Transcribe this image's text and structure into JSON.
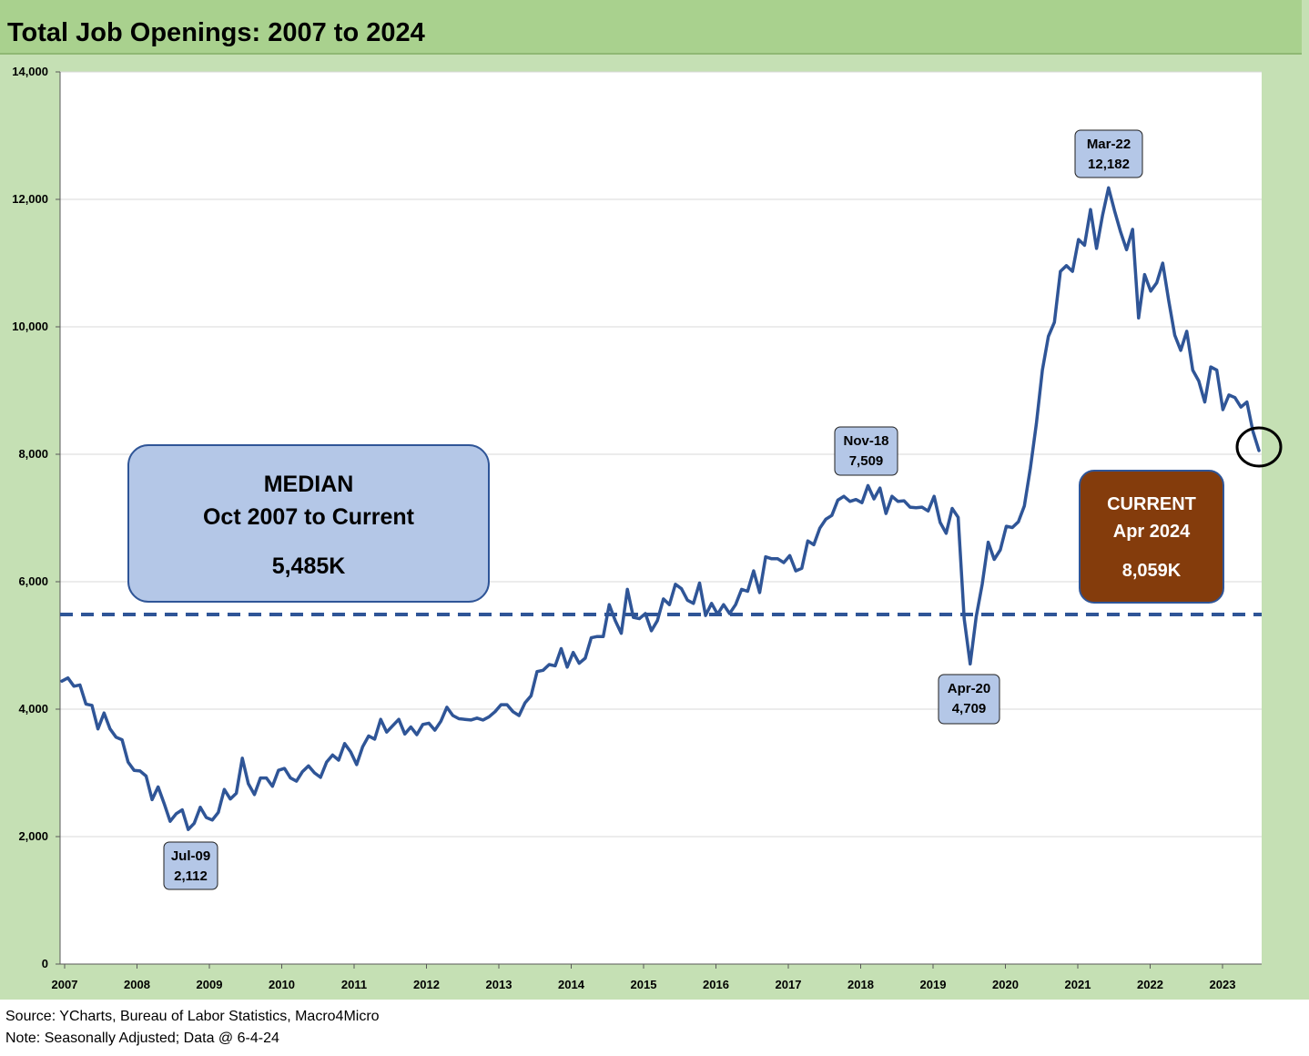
{
  "title": "Total Job Openings: 2007 to 2024",
  "footer": {
    "source": "Source: YCharts, Bureau of Labor Statistics, Macro4Micro",
    "note": "Note: Seasonally Adjusted; Data @ 6-4-24"
  },
  "colors": {
    "line": "#2f5597",
    "median_line": "#2f5597",
    "median_box_fill": "#b4c7e7",
    "callout_fill": "#b4c7e7",
    "current_box_fill": "#843c0c",
    "title_bar": "#a9d18e",
    "frame": "#c5e0b4"
  },
  "median_box": {
    "line1": "MEDIAN",
    "line2": "Oct 2007 to Current",
    "value": "5,485K"
  },
  "current_box": {
    "line1": "CURRENT",
    "line2": "Apr 2024",
    "value": "8,059K"
  },
  "chart_data": {
    "type": "line",
    "title": "Total Job Openings: 2007 to 2024",
    "xlabel": "",
    "ylabel": "",
    "ylim": [
      0,
      14000
    ],
    "yticks": [
      0,
      2000,
      4000,
      6000,
      8000,
      10000,
      12000,
      14000
    ],
    "ytick_labels": [
      "0",
      "2,000",
      "4,000",
      "6,000",
      "8,000",
      "10,000",
      "12,000",
      "14,000"
    ],
    "xtick_labels": [
      "2007",
      "2008",
      "2009",
      "2010",
      "2011",
      "2012",
      "2013",
      "2014",
      "2015",
      "2016",
      "2017",
      "2018",
      "2019",
      "2020",
      "2021",
      "2022",
      "2023"
    ],
    "grid": "horizontal",
    "median": 5485,
    "series": [
      {
        "values": [
          4440,
          4490,
          4360,
          4380,
          4080,
          4060,
          3690,
          3940,
          3690,
          3560,
          3520,
          3170,
          3040,
          3030,
          2950,
          2580,
          2780,
          2520,
          2240,
          2360,
          2420,
          2112,
          2210,
          2460,
          2300,
          2260,
          2380,
          2740,
          2590,
          2680,
          3230,
          2830,
          2660,
          2920,
          2920,
          2790,
          3040,
          3070,
          2920,
          2870,
          3020,
          3110,
          3000,
          2930,
          3170,
          3280,
          3200,
          3460,
          3330,
          3130,
          3410,
          3580,
          3530,
          3840,
          3640,
          3740,
          3840,
          3610,
          3720,
          3600,
          3760,
          3780,
          3670,
          3810,
          4030,
          3900,
          3850,
          3840,
          3830,
          3860,
          3830,
          3880,
          3960,
          4070,
          4070,
          3960,
          3900,
          4100,
          4210,
          4590,
          4610,
          4700,
          4680,
          4950,
          4660,
          4890,
          4720,
          4800,
          5120,
          5140,
          5140,
          5640,
          5390,
          5190,
          5880,
          5440,
          5420,
          5500,
          5230,
          5390,
          5730,
          5640,
          5960,
          5890,
          5710,
          5660,
          5980,
          5470,
          5660,
          5490,
          5640,
          5500,
          5640,
          5880,
          5850,
          6170,
          5830,
          6390,
          6360,
          6360,
          6300,
          6410,
          6170,
          6210,
          6640,
          6580,
          6840,
          6980,
          7040,
          7280,
          7340,
          7260,
          7290,
          7240,
          7509,
          7300,
          7470,
          7070,
          7340,
          7260,
          7270,
          7170,
          7160,
          7170,
          7110,
          7340,
          6930,
          6760,
          7150,
          7010,
          5420,
          4709,
          5450,
          5960,
          6620,
          6350,
          6500,
          6870,
          6850,
          6940,
          7190,
          7780,
          8480,
          9320,
          9850,
          10070,
          10870,
          10960,
          10870,
          11370,
          11280,
          11840,
          11230,
          11750,
          12182,
          11820,
          11490,
          11210,
          11530,
          10140,
          10820,
          10560,
          10690,
          11000,
          10410,
          9870,
          9630,
          9930,
          9320,
          9150,
          8820,
          9370,
          9320,
          8700,
          8930,
          8890,
          8740,
          8820,
          8360,
          8059
        ]
      }
    ],
    "annotations": [
      {
        "label": "Jul-09",
        "value_text": "2,112"
      },
      {
        "label": "Nov-18",
        "value_text": "7,509"
      },
      {
        "label": "Apr-20",
        "value_text": "4,709"
      },
      {
        "label": "Mar-22",
        "value_text": "12,182"
      }
    ]
  }
}
